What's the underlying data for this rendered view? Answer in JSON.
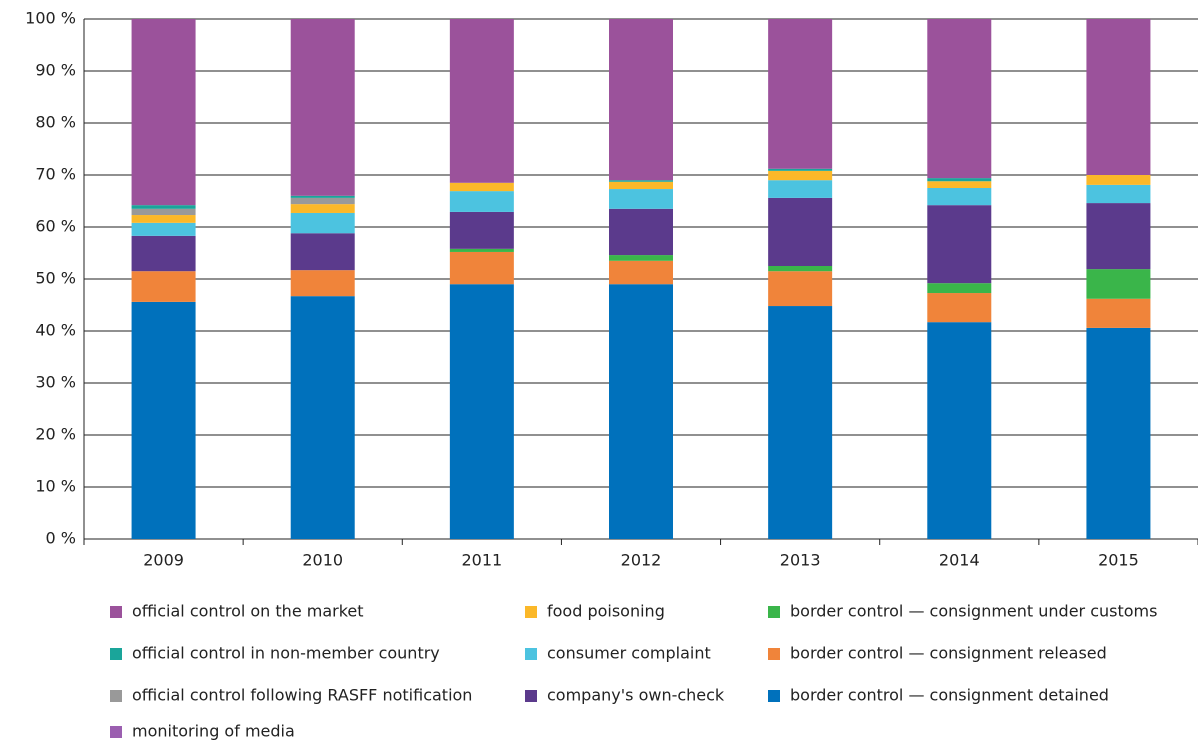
{
  "chart_data": {
    "type": "stacked_bar",
    "categories": [
      "2009",
      "2010",
      "2011",
      "2012",
      "2013",
      "2014",
      "2015"
    ],
    "series": [
      {
        "name": "border control — consignment detained",
        "color": "#0071bc",
        "values": [
          45.6,
          46.7,
          49.0,
          49.0,
          44.8,
          41.7,
          40.6
        ]
      },
      {
        "name": "border control — consignment released",
        "color": "#f0843a",
        "values": [
          5.9,
          5.0,
          6.2,
          4.5,
          6.7,
          5.6,
          5.6
        ]
      },
      {
        "name": "border control — consignment under customs",
        "color": "#3ab54a",
        "values": [
          0,
          0,
          0.6,
          1.1,
          1.0,
          1.9,
          5.7
        ]
      },
      {
        "name": "company's own-check",
        "color": "#5b3a8c",
        "values": [
          6.8,
          7.1,
          7.1,
          8.9,
          13.1,
          15.0,
          12.7
        ]
      },
      {
        "name": "consumer complaint",
        "color": "#4cc3e0",
        "values": [
          2.5,
          3.9,
          4.0,
          3.8,
          3.4,
          3.3,
          3.5
        ]
      },
      {
        "name": "food poisoning",
        "color": "#fbb829",
        "values": [
          1.5,
          1.7,
          1.6,
          1.4,
          1.8,
          1.3,
          1.9
        ]
      },
      {
        "name": "official control following RASFF notification",
        "color": "#999999",
        "values": [
          1.2,
          1.2,
          0,
          0,
          0,
          0,
          0
        ]
      },
      {
        "name": "official control in non-member country",
        "color": "#1aa59a",
        "values": [
          0.7,
          0.4,
          0,
          0.3,
          0.4,
          0.6,
          0
        ]
      },
      {
        "name": "monitoring of media",
        "color": "#9b5fb0",
        "values": [
          0,
          0,
          0,
          0,
          0,
          0,
          0
        ]
      },
      {
        "name": "official control on the market",
        "color": "#9b529b",
        "values": [
          35.8,
          34.0,
          31.5,
          31.0,
          28.8,
          30.6,
          30.0
        ]
      }
    ],
    "ylim": [
      0,
      100
    ],
    "yticks": [
      {
        "value": 0,
        "label": "0 %"
      },
      {
        "value": 10,
        "label": "10 %"
      },
      {
        "value": 20,
        "label": "20 %"
      },
      {
        "value": 30,
        "label": "30 %"
      },
      {
        "value": 40,
        "label": "40 %"
      },
      {
        "value": 50,
        "label": "50 %"
      },
      {
        "value": 60,
        "label": "60 %"
      },
      {
        "value": 70,
        "label": "70 %"
      },
      {
        "value": 80,
        "label": "80 %"
      },
      {
        "value": 90,
        "label": "90 %"
      },
      {
        "value": 100,
        "label": "100 %"
      }
    ],
    "grid": true
  }
}
